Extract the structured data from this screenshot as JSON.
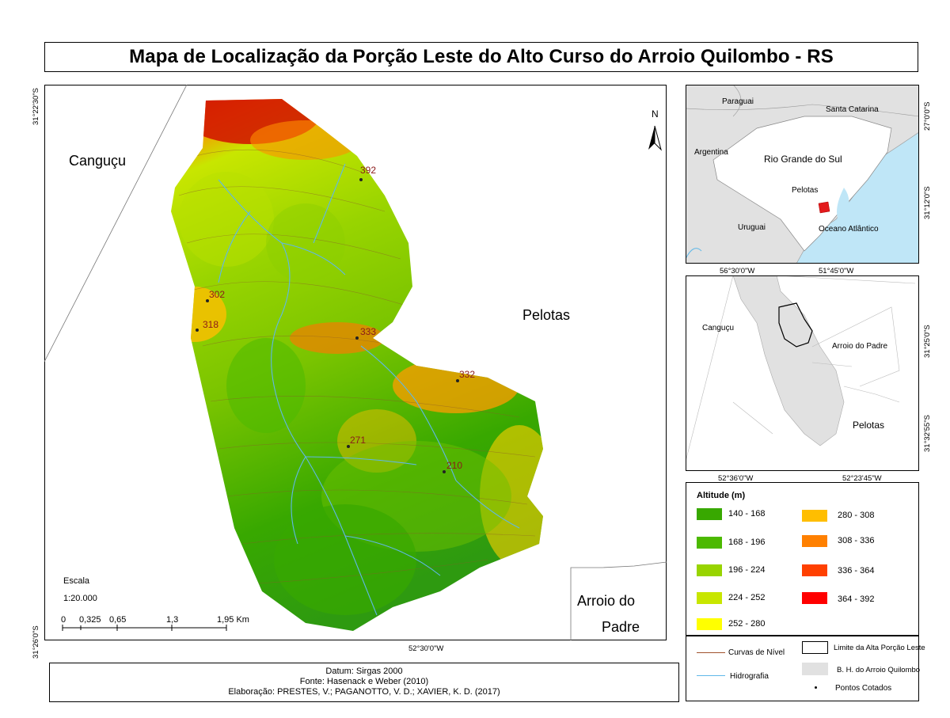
{
  "title": "Mapa de Localização da Porção Leste do Alto Curso do Arroio Quilombo - RS",
  "main_map": {
    "lat_top": "31°22'30\"S",
    "lat_bottom": "31°26'0\"S",
    "lon_bottom": "52°30'0\"W",
    "place_labels": {
      "cangucu": "Canguçu",
      "pelotas": "Pelotas",
      "arroio_line1": "Arroio do",
      "arroio_line2": "Padre"
    },
    "north_label": "N",
    "spot_heights": [
      "392",
      "302",
      "318",
      "333",
      "332",
      "271",
      "210"
    ],
    "scale": {
      "label": "Escala",
      "ratio": "1:20.000",
      "ticks": [
        "0",
        "0,325",
        "0,65",
        "1,3",
        "1,95 Km"
      ]
    }
  },
  "inset_state": {
    "labels": {
      "paraguai": "Paraguai",
      "santa_catarina": "Santa Catarina",
      "argentina": "Argentina",
      "rs": "Rio Grande do Sul",
      "pelotas": "Pelotas",
      "uruguai": "Uruguai",
      "oceano": "Oceano Atlântico"
    },
    "lat_top": "27°0'0\"S",
    "lat_bottom": "31°12'0\"S",
    "lon_left": "56°30'0\"W",
    "lon_right": "51°45'0\"W"
  },
  "inset_basin": {
    "labels": {
      "cangucu": "Canguçu",
      "arroio": "Arroio do Padre",
      "pelotas": "Pelotas"
    },
    "lat_top": "31°25'0\"S",
    "lat_bottom": "31°32'55\"S",
    "lon_left": "52°36'0\"W",
    "lon_right": "52°23'45\"W"
  },
  "altitude_legend": {
    "title": "Altitude (m)",
    "classes": [
      {
        "range": "140 - 168",
        "color": "#38a800"
      },
      {
        "range": "168 - 196",
        "color": "#4cb900"
      },
      {
        "range": "196 - 224",
        "color": "#98d400"
      },
      {
        "range": "224 - 252",
        "color": "#c8e600"
      },
      {
        "range": "252 - 280",
        "color": "#ffff00"
      },
      {
        "range": "280 - 308",
        "color": "#ffbe00"
      },
      {
        "range": "308 - 336",
        "color": "#ff8000"
      },
      {
        "range": "336 - 364",
        "color": "#ff4000"
      },
      {
        "range": "364 - 392",
        "color": "#ff0000"
      }
    ]
  },
  "line_legend": {
    "curvas": "Curvas de Nível",
    "hidrografia": "Hidrografia",
    "limite": "Limite da Alta Porção Leste",
    "bacia": "B. H. do Arroio Quilombo",
    "pontos": "Pontos Cotados"
  },
  "footer": {
    "line1": "Datum: Sirgas 2000",
    "line2": "Fonte: Hasenack e Weber (2010)",
    "line3": "Elaboração: PRESTES, V.; PAGANOTTO, V. D.; XAVIER, K. D. (2017)"
  },
  "colors": {
    "sea": "#bfe6f7",
    "land": "#e1e1e1",
    "study_area": "#e31a1c",
    "hydro": "#5fb8e8",
    "contour": "#a0522d"
  }
}
